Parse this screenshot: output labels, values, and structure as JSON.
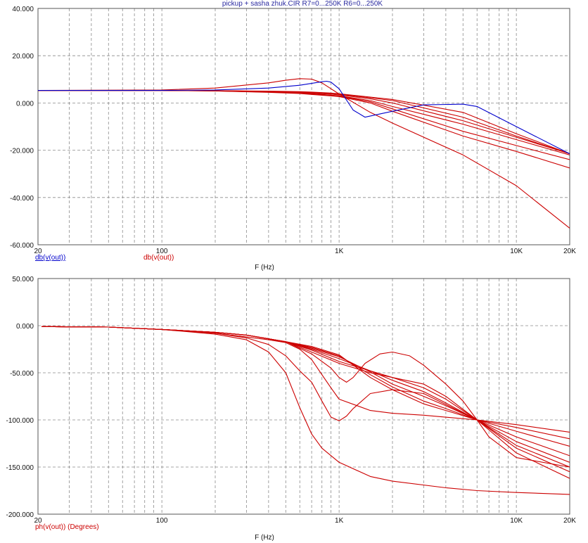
{
  "window_title": "pickup + sasha zhuk.CIR R7=0...250K R6=0...250K",
  "chart_data": [
    {
      "type": "line",
      "xscale": "log",
      "xlim": [
        20,
        20000
      ],
      "ylim": [
        -60,
        40
      ],
      "xticks": [
        {
          "v": 20,
          "label": "20"
        },
        {
          "v": 100,
          "label": "100"
        },
        {
          "v": 1000,
          "label": "1K"
        },
        {
          "v": 10000,
          "label": "10K"
        },
        {
          "v": 20000,
          "label": "20K"
        }
      ],
      "yticks": [
        {
          "v": 40,
          "label": "40.000"
        },
        {
          "v": 20,
          "label": "20.000"
        },
        {
          "v": 0,
          "label": "0.000"
        },
        {
          "v": -20,
          "label": "-20.000"
        },
        {
          "v": -40,
          "label": "-40.000"
        },
        {
          "v": -60,
          "label": "-60.000"
        }
      ],
      "xlabel": "F (Hz)",
      "legend": [
        {
          "text": "db(v(out))",
          "color": "#0000cc"
        },
        {
          "text": "db(v(out))",
          "color": "#cc0000"
        }
      ],
      "grid": true,
      "series": [
        {
          "color": "#cc0000",
          "x": [
            20,
            100,
            200,
            400,
            600,
            700,
            900,
            1000,
            1500,
            2000,
            5000,
            10000,
            20000
          ],
          "y": [
            5.3,
            5.3,
            5.2,
            4.8,
            4.2,
            3.9,
            3.3,
            3.0,
            1.0,
            -1.5,
            -9,
            -15.5,
            -22
          ]
        },
        {
          "color": "#cc0000",
          "x": [
            20,
            100,
            200,
            400,
            600,
            700,
            900,
            1000,
            1500,
            2000,
            5000,
            10000,
            20000
          ],
          "y": [
            5.3,
            5.3,
            5.1,
            4.6,
            4.1,
            3.8,
            3.2,
            2.9,
            0.5,
            -2.5,
            -12,
            -18,
            -24
          ]
        },
        {
          "color": "#cc0000",
          "x": [
            20,
            100,
            200,
            400,
            600,
            700,
            900,
            1000,
            1500,
            2000,
            5000,
            10000,
            20000
          ],
          "y": [
            5.3,
            5.3,
            5.1,
            4.5,
            4.0,
            3.6,
            3.0,
            2.7,
            0,
            -3.5,
            -14,
            -20.5,
            -27.5
          ]
        },
        {
          "color": "#cc0000",
          "x": [
            20,
            100,
            200,
            400,
            600,
            700,
            900,
            1000,
            1500,
            2000,
            5000,
            10000,
            20000
          ],
          "y": [
            5.3,
            5.3,
            5.2,
            5.0,
            4.8,
            4.6,
            4.2,
            3.9,
            2.5,
            1.5,
            -4,
            -13,
            -21.5
          ]
        },
        {
          "color": "#cc0000",
          "x": [
            20,
            100,
            200,
            400,
            600,
            700,
            900,
            1000,
            1500,
            2000,
            5000,
            10000,
            20000
          ],
          "y": [
            5.3,
            5.3,
            5.2,
            4.9,
            4.6,
            4.4,
            4.0,
            3.7,
            2.2,
            1.0,
            -6,
            -14,
            -21.5
          ]
        },
        {
          "color": "#cc0000",
          "x": [
            20,
            100,
            200,
            400,
            600,
            700,
            900,
            1000,
            1500,
            2000,
            5000,
            10000,
            20000
          ],
          "y": [
            5.3,
            5.3,
            5.2,
            4.9,
            4.5,
            4.2,
            3.7,
            3.4,
            1.8,
            0,
            -7.5,
            -14.5,
            -21.5
          ]
        },
        {
          "color": "#cc0000",
          "x": [
            20,
            100,
            200,
            400,
            500,
            600,
            700,
            800,
            900,
            1000,
            1500,
            2000,
            5000,
            10000,
            20000
          ],
          "y": [
            5.3,
            5.5,
            6.3,
            8.5,
            9.6,
            10.3,
            10.1,
            8.5,
            6,
            3.8,
            -4,
            -8.5,
            -22,
            -35,
            -53
          ]
        },
        {
          "color": "#0000cc",
          "x": [
            20,
            100,
            200,
            400,
            600,
            800,
            850,
            900,
            1000,
            1200,
            1400,
            2000,
            3000,
            5000,
            6000,
            10000,
            20000
          ],
          "y": [
            5.3,
            5.3,
            5.5,
            6.3,
            7.5,
            9.0,
            9.2,
            8.8,
            6,
            -3,
            -6,
            -3.5,
            -0.8,
            -0.5,
            -1.5,
            -10,
            -21.5
          ]
        }
      ]
    },
    {
      "type": "line",
      "xscale": "log",
      "xlim": [
        20,
        20000
      ],
      "ylim": [
        -200,
        50
      ],
      "xticks": [
        {
          "v": 20,
          "label": "20"
        },
        {
          "v": 100,
          "label": "100"
        },
        {
          "v": 1000,
          "label": "1K"
        },
        {
          "v": 10000,
          "label": "10K"
        },
        {
          "v": 20000,
          "label": "20K"
        }
      ],
      "yticks": [
        {
          "v": 50,
          "label": "50.000"
        },
        {
          "v": 0,
          "label": "0.000"
        },
        {
          "v": -50,
          "label": "-50.000"
        },
        {
          "v": -100,
          "label": "-100.000"
        },
        {
          "v": -150,
          "label": "-150.000"
        },
        {
          "v": -200,
          "label": "-200.000"
        }
      ],
      "xlabel": "F (Hz)",
      "legend": [
        {
          "text": "ph(v(out)) (Degrees)",
          "color": "#cc0000"
        }
      ],
      "grid": true,
      "series": [
        {
          "color": "#cc0000",
          "x": [
            21,
            50,
            100,
            200,
            300,
            400,
            500,
            600,
            700,
            800,
            1000,
            1500,
            2000,
            4000,
            6000,
            10000,
            20000
          ],
          "y": [
            -1,
            -1.5,
            -4,
            -9,
            -15,
            -28,
            -50,
            -87,
            -115,
            -130,
            -145,
            -160,
            -165,
            -172,
            -175,
            -177,
            -179
          ]
        },
        {
          "color": "#cc0000",
          "x": [
            21,
            50,
            100,
            200,
            300,
            400,
            500,
            600,
            700,
            800,
            900,
            1000,
            1100,
            1200,
            1500,
            2000,
            3000,
            6000,
            10000,
            20000
          ],
          "y": [
            -1,
            -1.5,
            -4,
            -8,
            -13,
            -20,
            -32,
            -48,
            -60,
            -80,
            -97,
            -101,
            -96,
            -88,
            -72,
            -68,
            -72,
            -100,
            -135,
            -162
          ]
        },
        {
          "color": "#cc0000",
          "x": [
            21,
            50,
            100,
            200,
            300,
            400,
            500,
            600,
            700,
            800,
            900,
            1000,
            1500,
            2000,
            3000,
            6000,
            10000,
            20000
          ],
          "y": [
            -1,
            -1.5,
            -4,
            -8,
            -12,
            -15,
            -18,
            -25,
            -36,
            -52,
            -66,
            -78,
            -90,
            -93,
            -95,
            -100,
            -105,
            -113
          ]
        },
        {
          "color": "#cc0000",
          "x": [
            21,
            50,
            100,
            200,
            300,
            500,
            700,
            900,
            1000,
            1100,
            1200,
            1400,
            1700,
            2000,
            2500,
            3000,
            4000,
            5000,
            6000,
            7000,
            10000,
            20000
          ],
          "y": [
            -1,
            -1.5,
            -4,
            -7,
            -10,
            -17,
            -30,
            -45,
            -55,
            -60,
            -55,
            -40,
            -30,
            -28,
            -32,
            -42,
            -62,
            -80,
            -100,
            -118,
            -140,
            -150
          ]
        },
        {
          "color": "#cc0000",
          "x": [
            21,
            50,
            100,
            200,
            300,
            500,
            700,
            1000,
            1500,
            2000,
            3000,
            4000,
            6000,
            10000,
            20000
          ],
          "y": [
            -1,
            -1.5,
            -4,
            -7,
            -10,
            -17,
            -28,
            -40,
            -50,
            -55,
            -62,
            -75,
            -100,
            -130,
            -155
          ]
        },
        {
          "color": "#cc0000",
          "x": [
            21,
            50,
            100,
            200,
            300,
            500,
            700,
            1000,
            1500,
            2000,
            3000,
            4000,
            6000,
            10000,
            20000
          ],
          "y": [
            -1,
            -1.5,
            -4,
            -7,
            -10,
            -17,
            -26,
            -38,
            -48,
            -55,
            -66,
            -78,
            -100,
            -127,
            -150
          ]
        },
        {
          "color": "#cc0000",
          "x": [
            21,
            50,
            100,
            200,
            300,
            500,
            700,
            1000,
            1500,
            2000,
            3000,
            4000,
            6000,
            10000,
            20000
          ],
          "y": [
            -1,
            -1.5,
            -4,
            -7,
            -10,
            -17,
            -25,
            -35,
            -48,
            -58,
            -70,
            -82,
            -100,
            -123,
            -145
          ]
        },
        {
          "color": "#cc0000",
          "x": [
            21,
            50,
            100,
            200,
            300,
            500,
            700,
            1000,
            1500,
            2000,
            3000,
            4000,
            6000,
            10000,
            20000
          ],
          "y": [
            -1,
            -1.5,
            -4,
            -7,
            -10,
            -17,
            -24,
            -33,
            -49,
            -62,
            -75,
            -85,
            -100,
            -118,
            -138
          ]
        },
        {
          "color": "#cc0000",
          "x": [
            21,
            50,
            100,
            200,
            300,
            500,
            700,
            1000,
            1500,
            2000,
            3000,
            4000,
            6000,
            10000,
            20000
          ],
          "y": [
            -1,
            -1.5,
            -4,
            -7,
            -10,
            -17,
            -23,
            -32,
            -52,
            -65,
            -80,
            -88,
            -100,
            -112,
            -128
          ]
        },
        {
          "color": "#cc0000",
          "x": [
            21,
            50,
            100,
            200,
            300,
            500,
            700,
            1000,
            1500,
            2000,
            3000,
            4000,
            6000,
            10000,
            20000
          ],
          "y": [
            -1,
            -1.5,
            -4,
            -7,
            -10,
            -17,
            -22,
            -31,
            -55,
            -68,
            -83,
            -90,
            -100,
            -108,
            -120
          ]
        }
      ]
    }
  ]
}
